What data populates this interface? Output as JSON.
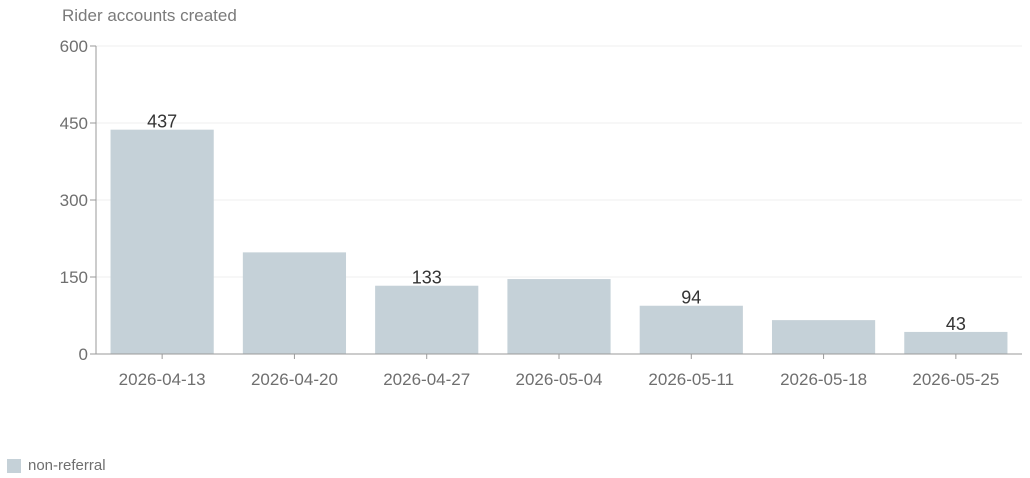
{
  "chart_data": {
    "type": "bar",
    "title": "",
    "ylabel": "Rider accounts created",
    "xlabel": "",
    "categories": [
      "2026-04-13",
      "2026-04-20",
      "2026-04-27",
      "2026-05-04",
      "2026-05-11",
      "2026-05-18",
      "2026-05-25"
    ],
    "series": [
      {
        "name": "non-referral",
        "color": "#c5d1d8",
        "values": [
          437,
          198,
          133,
          146,
          94,
          66,
          43
        ]
      }
    ],
    "data_labels": [
      {
        "category": "2026-04-13",
        "text": "437"
      },
      {
        "category": "2026-04-27",
        "text": "133"
      },
      {
        "category": "2026-05-11",
        "text": "94"
      },
      {
        "category": "2026-05-25",
        "text": "43"
      }
    ],
    "ylim": [
      0,
      600
    ],
    "yticks": [
      0,
      150,
      300,
      450,
      600
    ],
    "ytick_labels": [
      "0",
      "150",
      "300",
      "450",
      "600"
    ],
    "grid": true,
    "legend_position": "bottom-left"
  }
}
